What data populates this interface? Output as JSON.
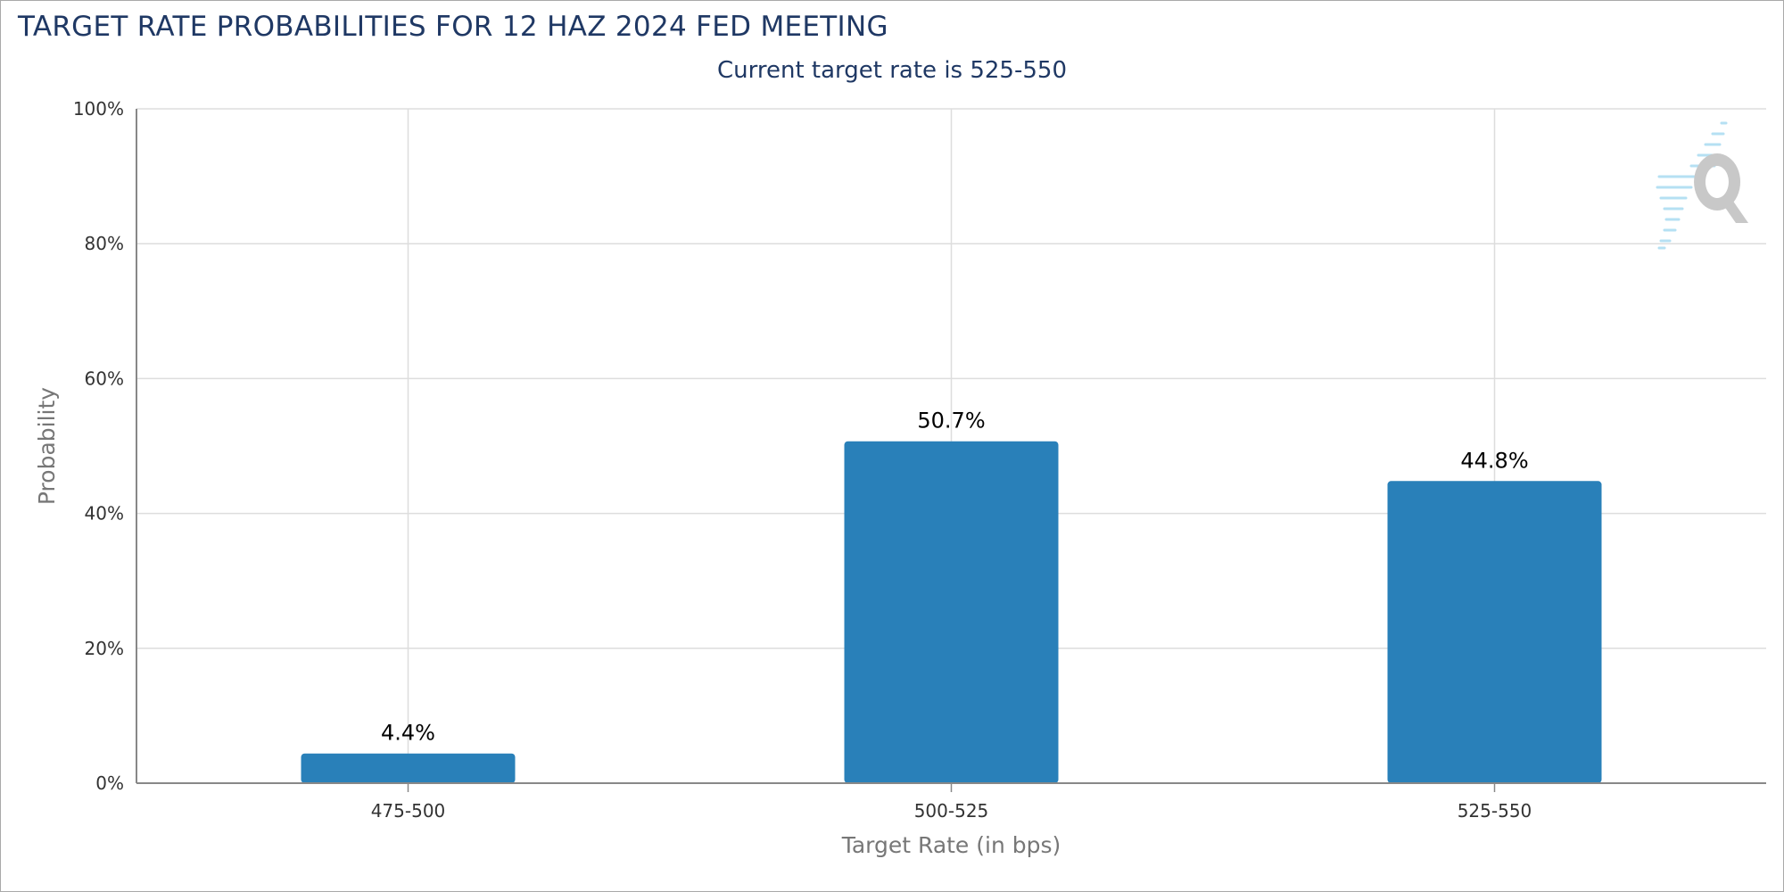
{
  "chart_data": {
    "type": "bar",
    "title": "TARGET RATE PROBABILITIES FOR 12 HAZ 2024 FED MEETING",
    "subtitle": "Current target rate is 525-550",
    "xlabel": "Target Rate (in bps)",
    "ylabel": "Probability",
    "categories": [
      "475-500",
      "500-525",
      "525-550"
    ],
    "values": [
      4.4,
      50.7,
      44.8
    ],
    "value_labels": [
      "4.4%",
      "50.7%",
      "44.8%"
    ],
    "ylim": [
      0,
      100
    ],
    "yticks": [
      0,
      20,
      40,
      60,
      80,
      100
    ],
    "ytick_labels": [
      "0%",
      "20%",
      "40%",
      "60%",
      "80%",
      "100%"
    ],
    "grid": true,
    "legend": "none",
    "bar_color": "#2980b9"
  }
}
